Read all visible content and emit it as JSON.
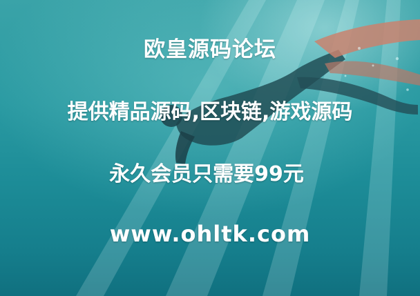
{
  "banner": {
    "title": "欧皇源码论坛",
    "tagline": "提供精品源码,区块链,游戏源码",
    "membership": "永久会员只需要99元",
    "website": "www.ohltk.com"
  },
  "colors": {
    "water_top": "#3aa3a8",
    "water_bottom": "#10707f",
    "text": "#ffffff",
    "fin": "#c9826e"
  },
  "image": "underwater-snorkeler-with-fins"
}
